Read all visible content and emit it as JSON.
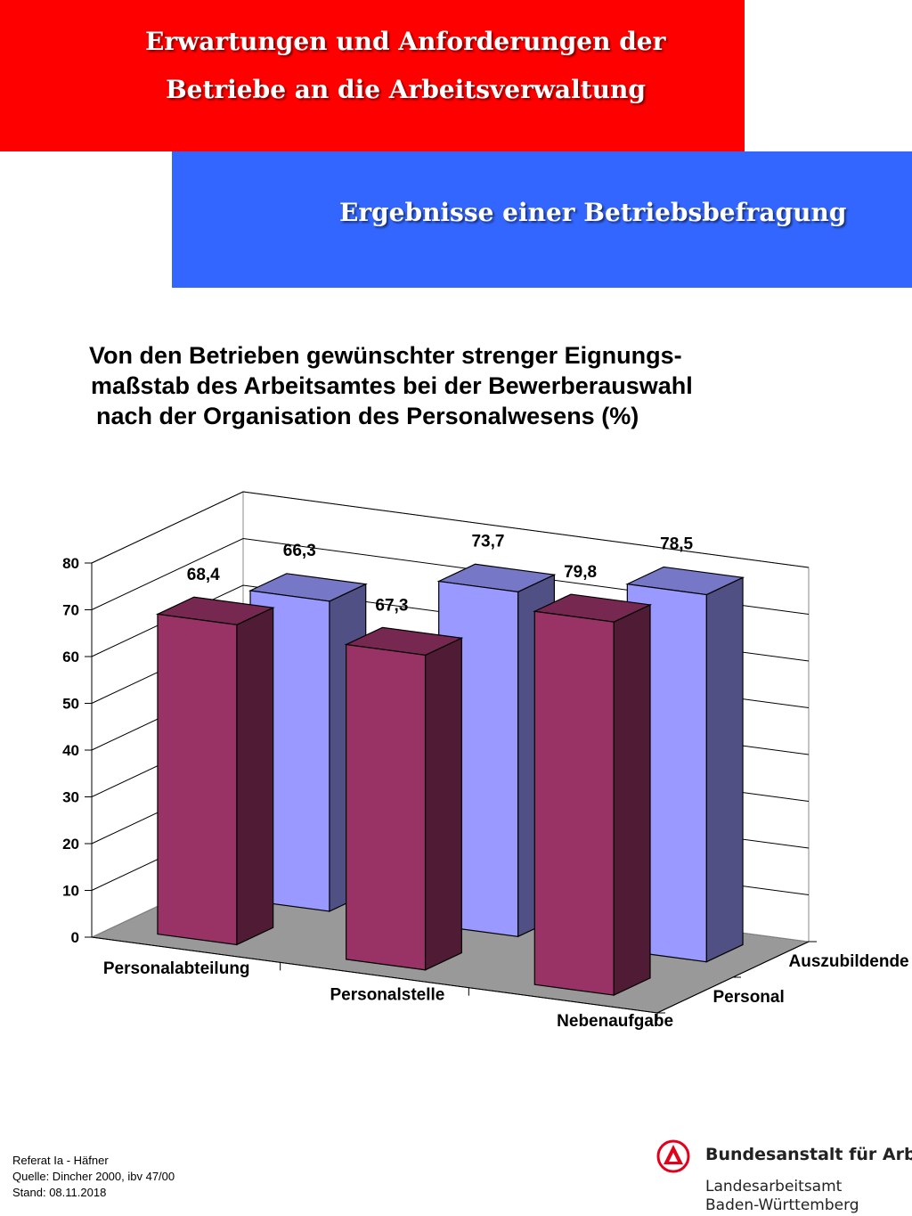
{
  "header": {
    "title_line1": "Erwartungen und Anforderungen der",
    "title_line2": "Betriebe an die Arbeitsverwaltung",
    "subtitle": "Ergebnisse einer Betriebsbefragung"
  },
  "colors": {
    "red_banner": "#ff0000",
    "blue_banner": "#3366ff",
    "personal_bar": "#993366",
    "auszubildende_bar": "#9999ff",
    "floor": "#999999"
  },
  "chart_data": {
    "type": "bar",
    "title_lines": [
      "Von den Betrieben gewünschter strenger Eignungs-",
      "maßstab des Arbeitsamtes bei der Bewerberauswahl",
      "nach der Organisation des Personalwesens (%)"
    ],
    "categories": [
      "Personalabteilung",
      "Personalstelle",
      "Nebenaufgabe"
    ],
    "series": [
      {
        "name": "Personal",
        "values": [
          68.4,
          67.3,
          79.8
        ],
        "labels": [
          "68,4",
          "67,3",
          "79,8"
        ]
      },
      {
        "name": "Auszubildende",
        "values": [
          66.3,
          73.7,
          78.5
        ],
        "labels": [
          "66,3",
          "73,7",
          "78,5"
        ]
      }
    ],
    "yticks": [
      "0",
      "10",
      "20",
      "30",
      "40",
      "50",
      "60",
      "70",
      "80"
    ],
    "ylim": [
      0,
      80
    ],
    "grid": true,
    "style": "3d-clustered-column"
  },
  "footer": {
    "line1": "Referat Ia - Häfner",
    "line2": "Quelle: Dincher 2000, ibv 47/00",
    "line3": "Stand: 08.11.2018"
  },
  "logo": {
    "org": "Bundesanstalt für Arbeit",
    "sub1": "Landesarbeitsamt",
    "sub2": "Baden-Württemberg"
  }
}
